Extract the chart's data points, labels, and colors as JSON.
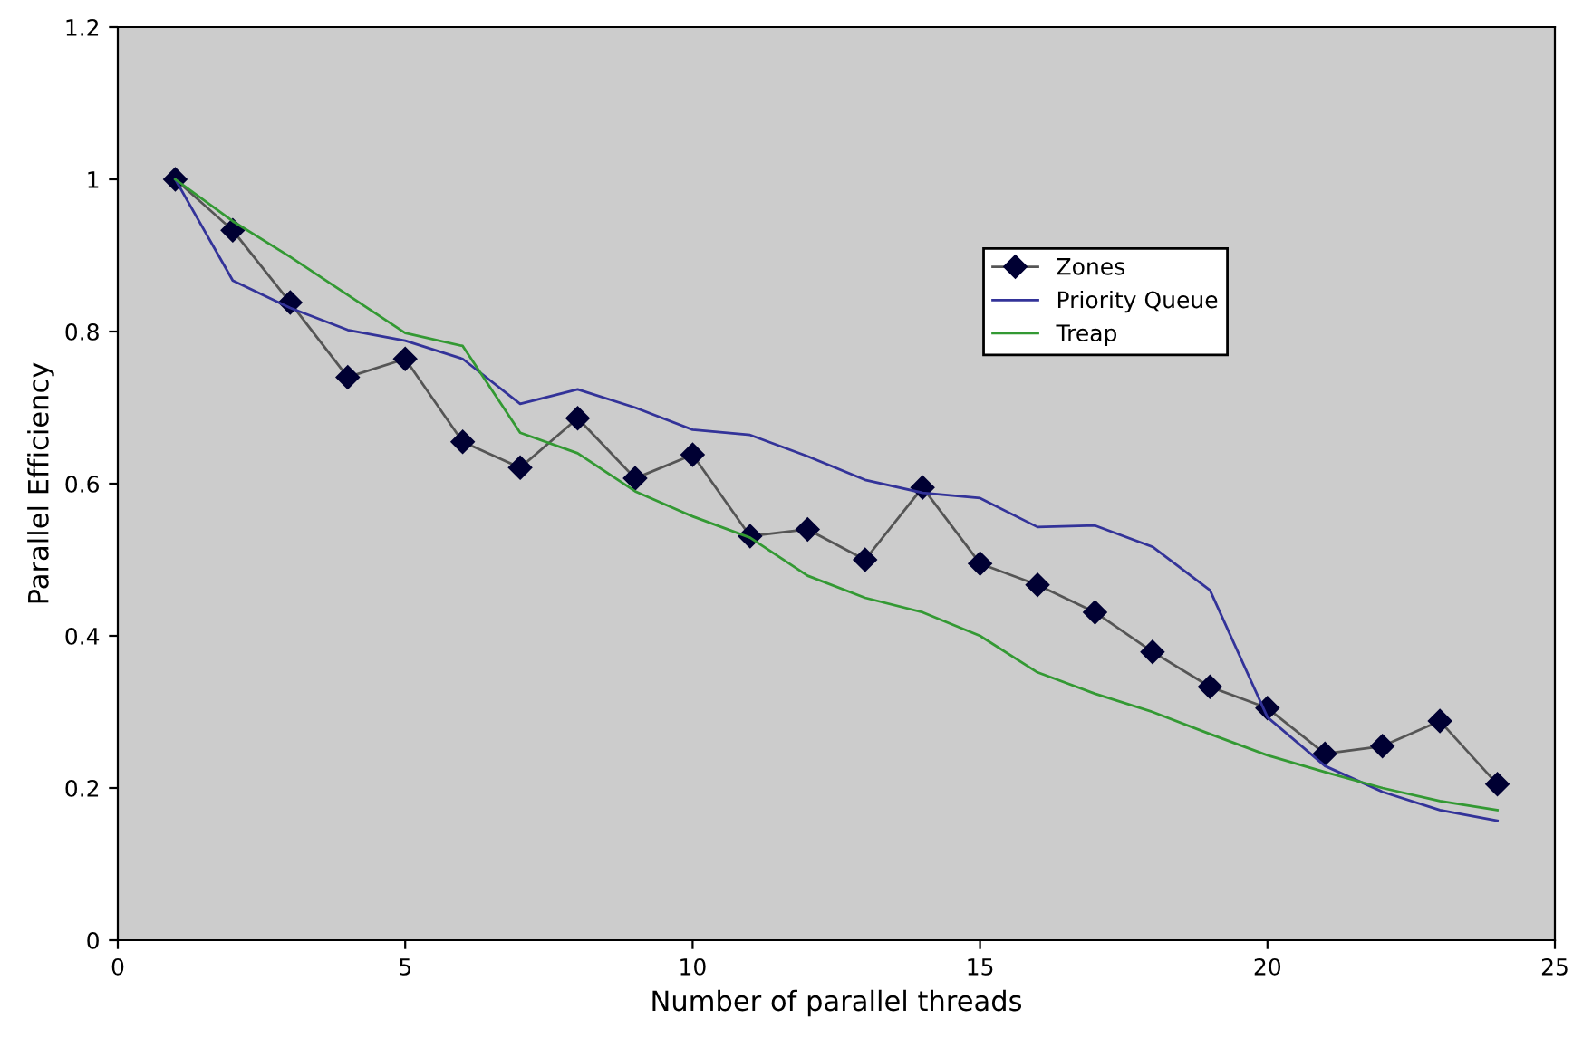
{
  "chart_data": {
    "type": "line",
    "xlabel": "Number of parallel threads",
    "ylabel": "Parallel Efficiency",
    "x": [
      1,
      2,
      3,
      4,
      5,
      6,
      7,
      8,
      9,
      10,
      11,
      12,
      13,
      14,
      15,
      16,
      17,
      18,
      19,
      20,
      21,
      22,
      23,
      24
    ],
    "xlim": [
      0,
      25
    ],
    "xticks": [
      0,
      5,
      10,
      15,
      20,
      25
    ],
    "ylim": [
      0,
      1.2
    ],
    "yticks": [
      0,
      0.2,
      0.4,
      0.6,
      0.8,
      1,
      1.2
    ],
    "grid": false,
    "legend": "top right",
    "series": [
      {
        "name": "Zones",
        "color": "#000033",
        "marker": "diamond",
        "values": [
          1.0,
          0.933,
          0.838,
          0.74,
          0.764,
          0.655,
          0.621,
          0.686,
          0.607,
          0.638,
          0.531,
          0.54,
          0.5,
          0.595,
          0.495,
          0.467,
          0.431,
          0.379,
          0.333,
          0.305,
          0.245,
          0.255,
          0.288,
          0.205
        ]
      },
      {
        "name": "Priority Queue",
        "color": "#333399",
        "marker": "none",
        "values": [
          1.0,
          0.867,
          0.831,
          0.802,
          0.788,
          0.764,
          0.705,
          0.724,
          0.7,
          0.671,
          0.664,
          0.636,
          0.605,
          0.588,
          0.581,
          0.543,
          0.545,
          0.517,
          0.46,
          0.293,
          0.229,
          0.195,
          0.171,
          0.157
        ]
      },
      {
        "name": "Treap",
        "color": "#339933",
        "marker": "none",
        "values": [
          1.0,
          0.945,
          0.898,
          0.848,
          0.798,
          0.781,
          0.667,
          0.64,
          0.59,
          0.557,
          0.529,
          0.479,
          0.45,
          0.431,
          0.4,
          0.352,
          0.324,
          0.3,
          0.271,
          0.243,
          0.221,
          0.2,
          0.183,
          0.171
        ]
      }
    ]
  }
}
